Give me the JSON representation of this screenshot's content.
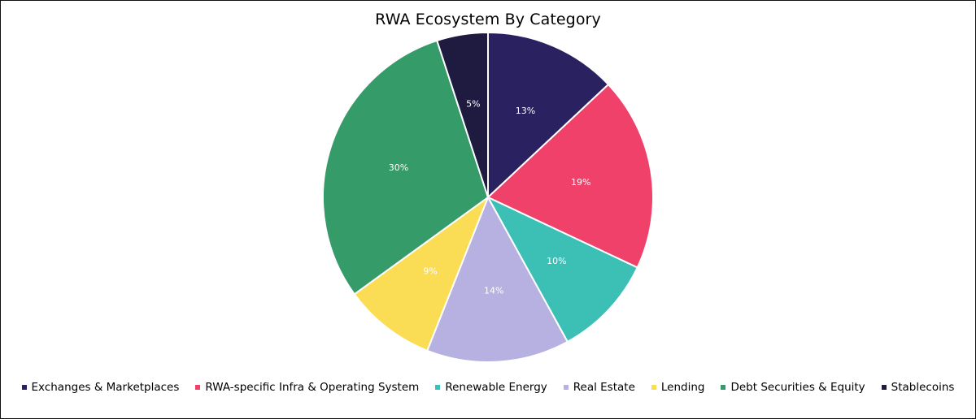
{
  "chart_data": {
    "type": "pie",
    "title": "RWA Ecosystem By Category",
    "legend_position": "bottom",
    "categories": [
      "Exchanges & Marketplaces",
      "RWA-specific Infra & Operating System",
      "Renewable Energy",
      "Real Estate",
      "Lending",
      "Debt Securities & Equity",
      "Stablecoins"
    ],
    "values": [
      13,
      19,
      10,
      14,
      9,
      30,
      5
    ],
    "labels": [
      "13%",
      "19%",
      "10%",
      "14%",
      "9%",
      "30%",
      "5%"
    ],
    "colors": [
      "#2a2260",
      "#ef4169",
      "#3cbfb5",
      "#b6b1e0",
      "#fbdc55",
      "#359b69",
      "#1e1a40"
    ]
  }
}
